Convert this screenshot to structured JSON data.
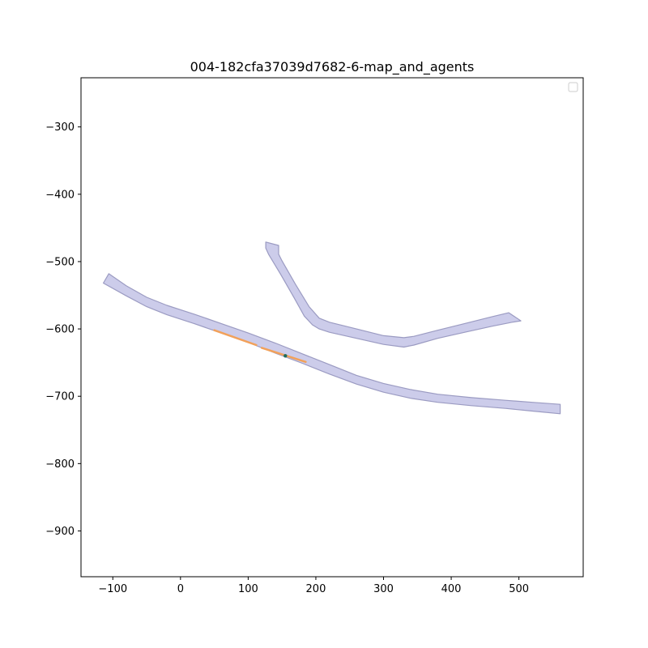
{
  "chart_data": {
    "type": "map",
    "title": "004-182cfa37039d7682-6-map_and_agents",
    "xlabel": "",
    "ylabel": "",
    "xlim": [
      -147,
      595
    ],
    "ylim": [
      -968,
      -227
    ],
    "x_ticks": [
      -100,
      0,
      100,
      200,
      300,
      400,
      500
    ],
    "y_ticks": [
      -300,
      -400,
      -500,
      -600,
      -700,
      -800,
      -900
    ],
    "x_tick_labels": [
      "−100",
      "0",
      "100",
      "200",
      "300",
      "400",
      "500"
    ],
    "y_tick_labels": [
      "−300",
      "−400",
      "−500",
      "−600",
      "−700",
      "−800",
      "−900"
    ],
    "grid": false,
    "legend": {
      "placement": "upper-right",
      "entries": []
    },
    "colors": {
      "lane_fill": "#ccccea",
      "lane_edge": "#9b9bc2",
      "agent_track": "#f2a15a",
      "agent_position": "#1f6b5a"
    },
    "lanes": [
      {
        "polygon": [
          [
            -106,
            -518
          ],
          [
            -80,
            -536
          ],
          [
            -50,
            -553
          ],
          [
            -20,
            -565
          ],
          [
            20,
            -578
          ],
          [
            60,
            -592
          ],
          [
            100,
            -606
          ],
          [
            140,
            -621
          ],
          [
            180,
            -637
          ],
          [
            220,
            -653
          ],
          [
            260,
            -669
          ],
          [
            300,
            -681
          ],
          [
            340,
            -690
          ],
          [
            380,
            -697
          ],
          [
            430,
            -702
          ],
          [
            480,
            -706
          ],
          [
            520,
            -709
          ],
          [
            561,
            -712
          ],
          [
            561,
            -726
          ],
          [
            520,
            -722
          ],
          [
            480,
            -718
          ],
          [
            430,
            -714
          ],
          [
            380,
            -709
          ],
          [
            340,
            -703
          ],
          [
            300,
            -694
          ],
          [
            260,
            -682
          ],
          [
            220,
            -667
          ],
          [
            180,
            -651
          ],
          [
            140,
            -636
          ],
          [
            100,
            -620
          ],
          [
            60,
            -606
          ],
          [
            20,
            -592
          ],
          [
            -20,
            -579
          ],
          [
            -50,
            -567
          ],
          [
            -80,
            -551
          ],
          [
            -114,
            -532
          ]
        ]
      },
      {
        "polygon": [
          [
            126,
            -471
          ],
          [
            145,
            -476
          ],
          [
            145,
            -489
          ],
          [
            150,
            -499
          ],
          [
            170,
            -534
          ],
          [
            190,
            -567
          ],
          [
            205,
            -584
          ],
          [
            220,
            -590
          ],
          [
            260,
            -600
          ],
          [
            300,
            -610
          ],
          [
            330,
            -613
          ],
          [
            345,
            -611
          ],
          [
            380,
            -602
          ],
          [
            420,
            -592
          ],
          [
            460,
            -582
          ],
          [
            485,
            -576
          ],
          [
            503,
            -588
          ],
          [
            490,
            -590
          ],
          [
            460,
            -596
          ],
          [
            420,
            -605
          ],
          [
            380,
            -614
          ],
          [
            345,
            -624
          ],
          [
            330,
            -627
          ],
          [
            300,
            -623
          ],
          [
            260,
            -614
          ],
          [
            220,
            -605
          ],
          [
            205,
            -600
          ],
          [
            195,
            -594
          ],
          [
            183,
            -581
          ],
          [
            168,
            -554
          ],
          [
            148,
            -519
          ],
          [
            130,
            -489
          ],
          [
            126,
            -480
          ]
        ]
      }
    ],
    "agents": [
      {
        "past_track": [
          [
            50,
            -602
          ],
          [
            112,
            -624
          ]
        ],
        "future_track": [
          [
            120,
            -628
          ],
          [
            185,
            -649
          ]
        ],
        "position": [
          155,
          -640
        ]
      }
    ]
  }
}
